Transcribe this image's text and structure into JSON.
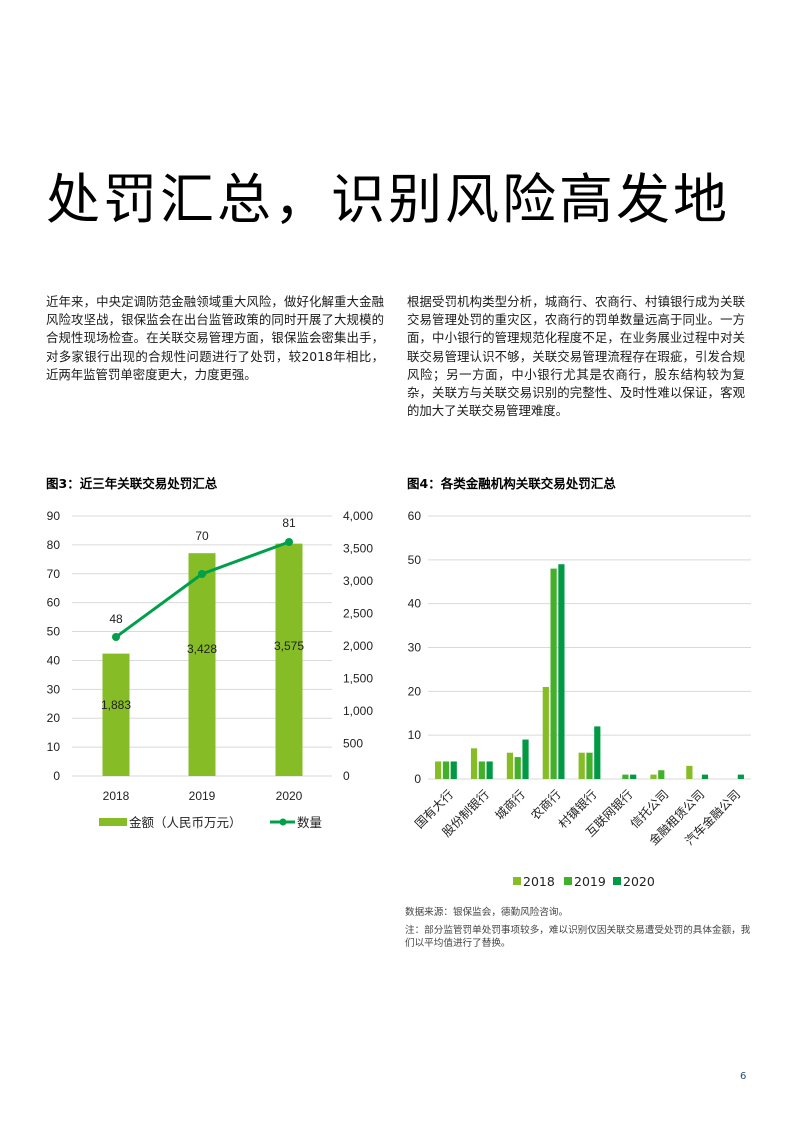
{
  "page": {
    "title": "处罚汇总，识别风险高发地",
    "page_number": "6"
  },
  "paragraphs": {
    "left": "近年来，中央定调防范金融领域重大风险，做好化解重大金融风险攻坚战，银保监会在出台监管政策的同时开展了大规模的合规性现场检查。在关联交易管理方面，银保监会密集出手，对多家银行出现的合规性问题进行了处罚，较2018年相比，近两年监管罚单密度更大，力度更强。",
    "right": "根据受罚机构类型分析，城商行、农商行、村镇银行成为关联交易管理处罚的重灾区，农商行的罚单数量远高于同业。一方面，中小银行的管理规范化程度不足，在业务展业过程中对关联交易管理认识不够，关联交易管理流程存在瑕疵，引发合规风险；另一方面，中小银行尤其是农商行，股东结构较为复杂，关联方与关联交易识别的完整性、及时性难以保证，客观的加大了关联交易管理难度。"
  },
  "figures": {
    "fig3_title": "图3：近三年关联交易处罚汇总",
    "fig4_title": "图4：各类金融机构关联交易处罚汇总"
  },
  "notes": {
    "source": "数据来源：银保监会，德勤风险咨询。",
    "remark": "注：部分监管罚单处罚事项较多，难以识别仅因关联交易遭受处罚的具体金额，我们以平均值进行了替换。"
  },
  "colors": {
    "bar_light": "#86bc25",
    "bar_mid": "#43b02a",
    "bar_dark": "#009a44",
    "line": "#00a04a",
    "grid": "#d9d9d9"
  },
  "chart_data": [
    {
      "type": "bar",
      "title": "图3：近三年关联交易处罚汇总",
      "categories": [
        "2018",
        "2019",
        "2020"
      ],
      "series": [
        {
          "name": "金额（人民币万元）",
          "type": "bar",
          "axis": "right",
          "values": [
            1883,
            3428,
            3575
          ],
          "labels": [
            "1,883",
            "3,428",
            "3,575"
          ],
          "color": "#86bc25"
        },
        {
          "name": "数量",
          "type": "line",
          "axis": "left",
          "values": [
            48,
            70,
            81
          ],
          "labels": [
            "48",
            "70",
            "81"
          ],
          "color": "#00a04a"
        }
      ],
      "left_axis": {
        "ticks": [
          "0",
          "10",
          "20",
          "30",
          "40",
          "50",
          "60",
          "70",
          "80",
          "90"
        ],
        "ylim": [
          0,
          90
        ]
      },
      "right_axis": {
        "ticks": [
          "0",
          "500",
          "1,000",
          "1,500",
          "2,000",
          "2,500",
          "3,000",
          "3,500",
          "4,000"
        ],
        "ylim": [
          0,
          4000
        ]
      },
      "legend": [
        "金额（人民币万元）",
        "数量"
      ],
      "legend_position": "bottom",
      "grid": true
    },
    {
      "type": "bar",
      "title": "图4：各类金融机构关联交易处罚汇总",
      "categories": [
        "国有大行",
        "股份制银行",
        "城商行",
        "农商行",
        "村镇银行",
        "互联网银行",
        "信托公司",
        "金融租赁公司",
        "汽车金融公司"
      ],
      "series": [
        {
          "name": "2018",
          "values": [
            4,
            7,
            6,
            21,
            6,
            0,
            1,
            3,
            0
          ],
          "color": "#86bc25"
        },
        {
          "name": "2019",
          "values": [
            4,
            4,
            5,
            48,
            6,
            1,
            2,
            0,
            0
          ],
          "color": "#43b02a"
        },
        {
          "name": "2020",
          "values": [
            4,
            4,
            9,
            49,
            12,
            1,
            0,
            1,
            1
          ],
          "color": "#009a44"
        }
      ],
      "y_axis": {
        "ticks": [
          "0",
          "10",
          "20",
          "30",
          "40",
          "50",
          "60"
        ],
        "ylim": [
          0,
          60
        ]
      },
      "legend": [
        "2018",
        "2019",
        "2020"
      ],
      "legend_position": "bottom",
      "grid": true,
      "xlabel": "",
      "ylabel": ""
    }
  ]
}
